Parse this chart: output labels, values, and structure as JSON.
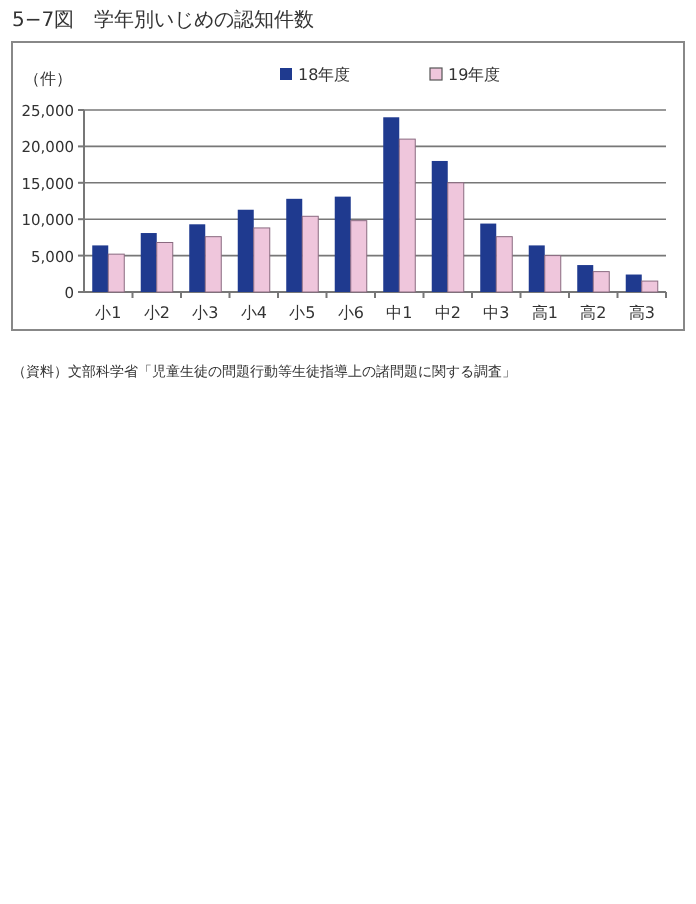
{
  "chart_data": {
    "type": "bar",
    "title": "5−7図　学年別いじめの認知件数",
    "ylabel": "（件）",
    "categories": [
      "小1",
      "小2",
      "小3",
      "小4",
      "小5",
      "小6",
      "中1",
      "中2",
      "中3",
      "高1",
      "高2",
      "高3"
    ],
    "series": [
      {
        "name": "18年度",
        "color": "#1f3a8f",
        "values": [
          6400,
          8100,
          9300,
          11300,
          12800,
          13100,
          24000,
          18000,
          9400,
          6400,
          3700,
          2400
        ]
      },
      {
        "name": "19年度",
        "color": "#efc6dc",
        "values": [
          5200,
          6800,
          7600,
          8800,
          10400,
          9800,
          21000,
          15000,
          7600,
          5000,
          2800,
          1500
        ]
      }
    ],
    "ylim": [
      0,
      25000
    ],
    "yticks": [
      {
        "value": 0,
        "label": "0"
      },
      {
        "value": 5000,
        "label": "5,000"
      },
      {
        "value": 10000,
        "label": "10,000"
      },
      {
        "value": 15000,
        "label": "15,000"
      },
      {
        "value": 20000,
        "label": "20,000"
      },
      {
        "value": 25000,
        "label": "25,000"
      }
    ],
    "grid": "y",
    "legend": "top",
    "annotations": [
      "（資料）文部科学省「児童生徒の問題行動等生徒指導上の諸問題に関する調査」"
    ]
  }
}
